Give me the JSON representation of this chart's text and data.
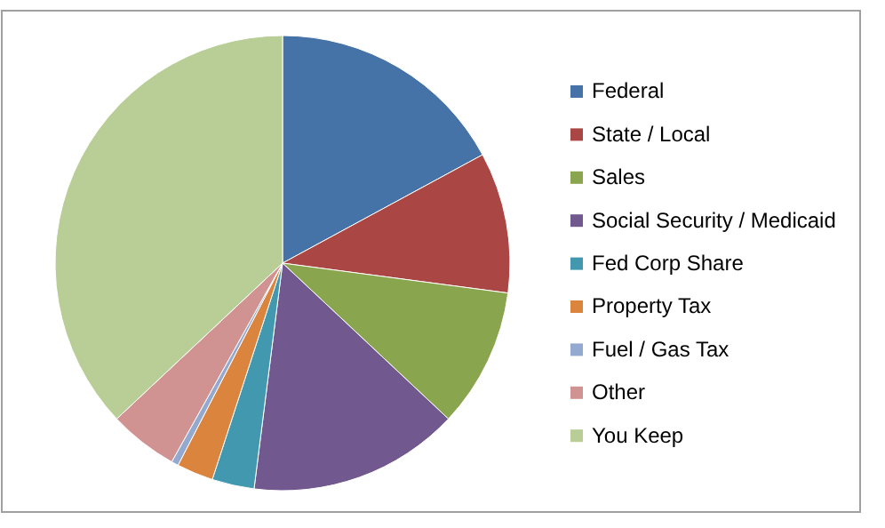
{
  "chart_data": {
    "type": "pie",
    "categories": [
      "Federal",
      "State / Local",
      "Sales",
      "Social Security / Medicaid",
      "Fed Corp Share",
      "Property Tax",
      "Fuel / Gas Tax",
      "Other",
      "You Keep"
    ],
    "values": [
      17.1,
      10.0,
      9.9,
      15.0,
      3.0,
      2.6,
      0.5,
      4.9,
      37.0
    ],
    "colors": [
      "#4572a7",
      "#aa4643",
      "#89a54e",
      "#71588f",
      "#4198af",
      "#db843d",
      "#93a9cf",
      "#d19392",
      "#b9cd96"
    ],
    "legend": "right"
  }
}
